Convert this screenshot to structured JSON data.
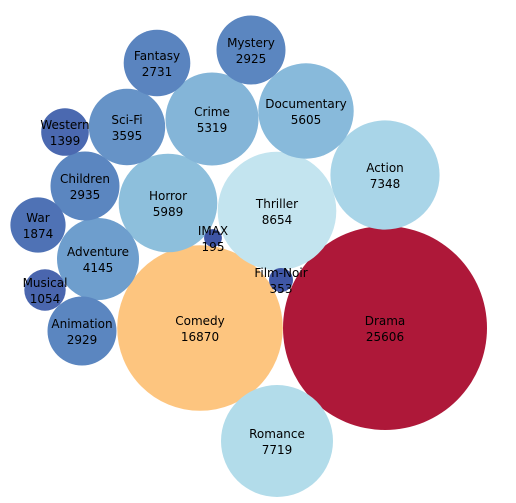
{
  "chart_data": {
    "type": "bubble",
    "title": "",
    "grid": false,
    "legend": "none",
    "items": [
      {
        "name": "Drama",
        "value": 25606,
        "color": "#ae1839"
      },
      {
        "name": "Comedy",
        "value": 16870,
        "color": "#fdc57f"
      },
      {
        "name": "Thriller",
        "value": 8654,
        "color": "#c3e4ef"
      },
      {
        "name": "Romance",
        "value": 7719,
        "color": "#b2dcea"
      },
      {
        "name": "Action",
        "value": 7348,
        "color": "#a9d5e8"
      },
      {
        "name": "Horror",
        "value": 5989,
        "color": "#8dbfdc"
      },
      {
        "name": "Documentary",
        "value": 5605,
        "color": "#88badb"
      },
      {
        "name": "Crime",
        "value": 5319,
        "color": "#84b5d8"
      },
      {
        "name": "Adventure",
        "value": 4145,
        "color": "#6e9ecd"
      },
      {
        "name": "Sci-Fi",
        "value": 3595,
        "color": "#6693c7"
      },
      {
        "name": "Children",
        "value": 2935,
        "color": "#5b86c0"
      },
      {
        "name": "Animation",
        "value": 2929,
        "color": "#5b86c0"
      },
      {
        "name": "Mystery",
        "value": 2925,
        "color": "#5b86c0"
      },
      {
        "name": "Fantasy",
        "value": 2731,
        "color": "#5a84bf"
      },
      {
        "name": "War",
        "value": 1874,
        "color": "#4f72b5"
      },
      {
        "name": "Western",
        "value": 1399,
        "color": "#4b69b0"
      },
      {
        "name": "Musical",
        "value": 1054,
        "color": "#4a66ae"
      },
      {
        "name": "Film-Noir",
        "value": 353,
        "color": "#3f57a6"
      },
      {
        "name": "IMAX",
        "value": 195,
        "color": "#3e55a5"
      }
    ]
  }
}
